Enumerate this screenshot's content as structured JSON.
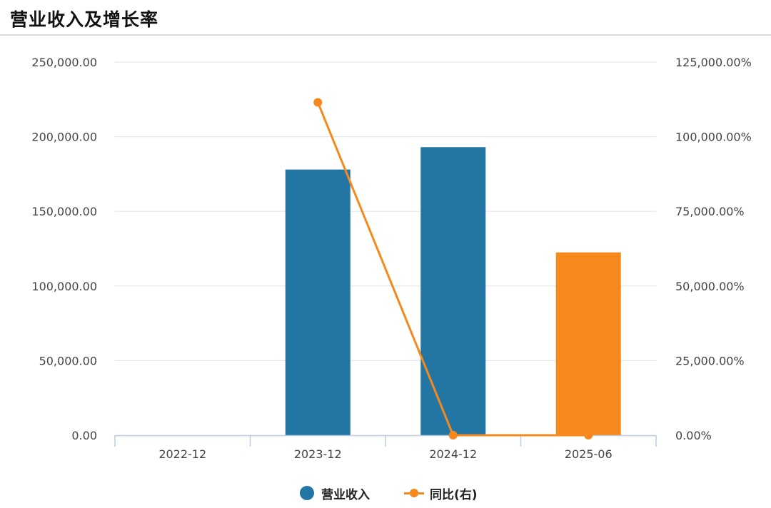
{
  "title": "营业收入及增长率",
  "colors": {
    "bar": "#2375a4",
    "bar_highlight": "#f5891e",
    "line": "#f5891e",
    "grid": "#e3e8ee",
    "axis": "#b9cde0"
  },
  "chart_data": {
    "type": "bar",
    "categories": [
      "2022-12",
      "2023-12",
      "2024-12",
      "2025-06"
    ],
    "series": [
      {
        "name": "营业收入",
        "type": "bar",
        "axis": "left",
        "values": [
          null,
          178000,
          193000,
          122500
        ]
      },
      {
        "name": "同比(右)",
        "type": "line",
        "axis": "right",
        "values": [
          null,
          111500,
          0,
          0
        ]
      }
    ],
    "y_left": {
      "min": 0,
      "max": 250000,
      "ticks": [
        "0.00",
        "50,000.00",
        "100,000.00",
        "150,000.00",
        "200,000.00",
        "250,000.00"
      ]
    },
    "y_right": {
      "min": 0,
      "max": 125000,
      "ticks": [
        "0.00%",
        "25,000.00%",
        "50,000.00%",
        "75,000.00%",
        "100,000.00%",
        "125,000.00%"
      ]
    },
    "highlight_category": "2025-06",
    "grid": true,
    "legend": "bottom-center"
  }
}
